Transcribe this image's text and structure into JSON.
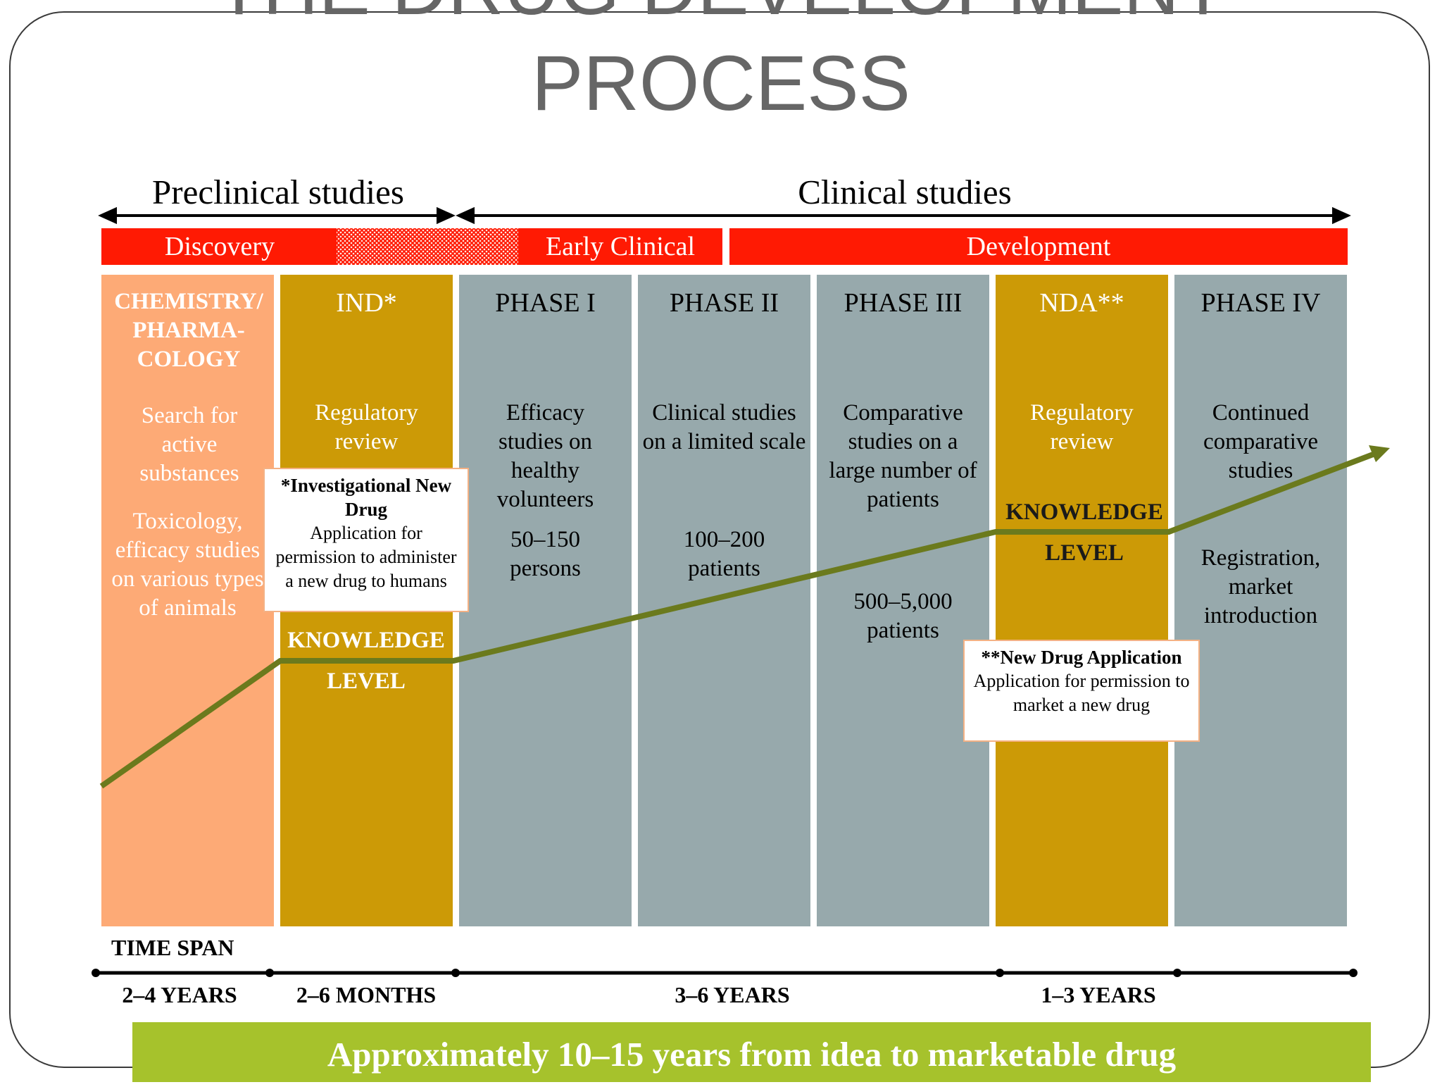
{
  "title_line1": "THE DRUG DEVELOPMENT",
  "title_line2": "PROCESS",
  "sections": {
    "preclinical": "Preclinical studies",
    "clinical": "Clinical studies"
  },
  "stages": {
    "discovery": "Discovery",
    "early_clinical": "Early Clinical",
    "development": "Development"
  },
  "columns": {
    "chem": {
      "head": "CHEMISTRY/ PHARMA- COLOGY",
      "text1": "Search for active substances",
      "text2": "Toxicology, efficacy studies on various types of animals"
    },
    "ind": {
      "head": "IND*",
      "text1": "Regulatory review"
    },
    "p1": {
      "head": "PHASE I",
      "text1": "Efficacy studies on healthy volunteers",
      "text2": "50–150 persons"
    },
    "p2": {
      "head": "PHASE II",
      "text1": "Clinical studies on a limited scale",
      "text2": "100–200 patients"
    },
    "p3": {
      "head": "PHASE III",
      "text1": "Comparative studies on a large number of patients",
      "text2": "500–5,000 patients"
    },
    "nda": {
      "head": "NDA**",
      "text1": "Regulatory review"
    },
    "p4": {
      "head": "PHASE IV",
      "text1": "Continued comparative studies",
      "text2": "Registration, market introduction"
    }
  },
  "knowledge": {
    "line1": "KNOWLEDGE",
    "line2": "LEVEL"
  },
  "notes": {
    "ind_title": "*Investigational New Drug",
    "ind_body": "Application for permission to administer a new drug to humans",
    "nda_title": "**New Drug Application",
    "nda_body": "Application for permission to market a new drug"
  },
  "time_span": {
    "label": "TIME SPAN",
    "spans": [
      "2–4 YEARS",
      "2–6 MONTHS",
      "3–6 YEARS",
      "1–3 YEARS"
    ]
  },
  "footer": "Approximately 10–15 years from idea to marketable drug",
  "colors": {
    "red": "#ff1a03",
    "orange": "#fdaa76",
    "gold": "#cc9a06",
    "gray": "#97a9ac",
    "green_line": "#6b7a1d",
    "footer_green": "#a6c22c"
  }
}
